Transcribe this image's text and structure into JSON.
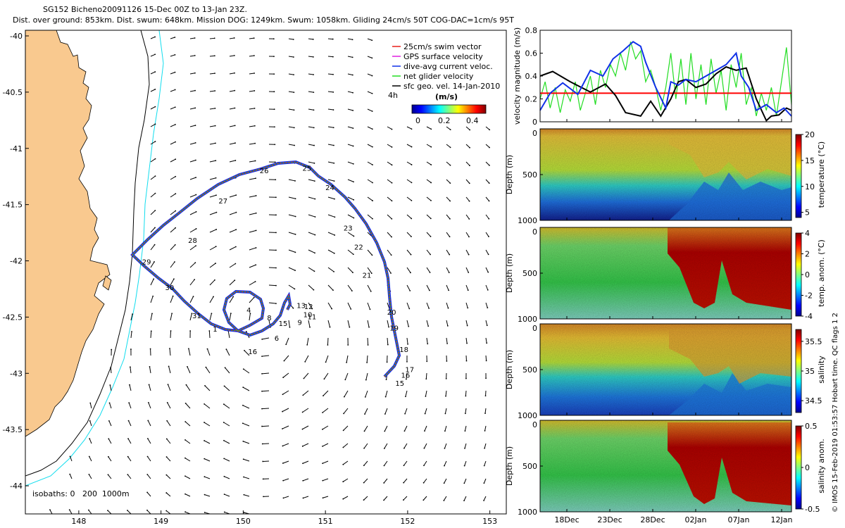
{
  "header": {
    "line1": "SG152 Bicheno20091126 15-Dec 00Z to 13-Jan 23Z.",
    "line2": "Dist. over ground: 853km. Dist. swum: 648km. Mission DOG: 1249km. Swum: 1058km. Gliding 24cm/s 50T COG-DAC=1cm/s 95T"
  },
  "side_note": "© IMOS 15-Feb-2019 01:53:57 Hobart time. QC flags 1 2",
  "colors": {
    "land": "#f9c98f",
    "swim": "#e8211b",
    "gps": "#e020e0",
    "dac": "#1030e8",
    "net": "#22dd22",
    "sfc": "#000000",
    "isobath_shallow": "#000000",
    "isobath_deep": "#11ddee"
  },
  "chart_data": [
    {
      "type": "map",
      "xlim": [
        147.35,
        153.2
      ],
      "ylim": [
        -44.25,
        -39.95
      ],
      "xticks": [
        148,
        149,
        150,
        151,
        152,
        153
      ],
      "yticks": [
        -40,
        -40.5,
        -41,
        -41.5,
        -42,
        -42.5,
        -43,
        -43.5,
        -44
      ],
      "isobaths_label": "isobaths: 0   200  1000m",
      "legend": [
        {
          "label": "25cm/s swim vector",
          "color": "#e8211b"
        },
        {
          "label": "GPS surface velocity",
          "color": "#e020e0"
        },
        {
          "label": "dive-avg current veloc.",
          "color": "#1030e8"
        },
        {
          "label": "net glider velocity",
          "color": "#22dd22"
        },
        {
          "label": "sfc geo. vel. 14-Jan-2010",
          "color": "#000000"
        }
      ],
      "colorbar": {
        "title": "(m/s)",
        "side_label": "4h",
        "ticks": [
          "0",
          "0.2",
          "0.4"
        ],
        "range": [
          0,
          0.5
        ]
      },
      "track_labels": [
        {
          "t": "25",
          "lon": 150.72,
          "lat": -41.2
        },
        {
          "t": "24",
          "lon": 151.0,
          "lat": -41.37
        },
        {
          "t": "23",
          "lon": 151.22,
          "lat": -41.73
        },
        {
          "t": "22",
          "lon": 151.35,
          "lat": -41.9
        },
        {
          "t": "21",
          "lon": 151.45,
          "lat": -42.15
        },
        {
          "t": "20",
          "lon": 151.75,
          "lat": -42.48
        },
        {
          "t": "19",
          "lon": 151.78,
          "lat": -42.62
        },
        {
          "t": "18",
          "lon": 151.9,
          "lat": -42.81
        },
        {
          "t": "17",
          "lon": 151.97,
          "lat": -42.99
        },
        {
          "t": "16",
          "lon": 151.92,
          "lat": -43.04
        },
        {
          "t": "15",
          "lon": 151.85,
          "lat": -43.11
        },
        {
          "t": "26",
          "lon": 150.2,
          "lat": -41.22
        },
        {
          "t": "27",
          "lon": 149.7,
          "lat": -41.49
        },
        {
          "t": "28",
          "lon": 149.33,
          "lat": -41.84
        },
        {
          "t": "29",
          "lon": 148.77,
          "lat": -42.03
        },
        {
          "t": "30",
          "lon": 149.05,
          "lat": -42.26
        },
        {
          "t": "31",
          "lon": 149.38,
          "lat": -42.51
        },
        {
          "t": "1",
          "lon": 149.63,
          "lat": -42.63
        },
        {
          "t": "4",
          "lon": 150.04,
          "lat": -42.46
        },
        {
          "t": "8",
          "lon": 150.29,
          "lat": -42.53
        },
        {
          "t": "15",
          "lon": 150.43,
          "lat": -42.58
        },
        {
          "t": "16",
          "lon": 150.06,
          "lat": -42.83
        },
        {
          "t": "6",
          "lon": 150.38,
          "lat": -42.71
        },
        {
          "t": "13",
          "lon": 150.65,
          "lat": -42.42
        },
        {
          "t": "12",
          "lon": 150.74,
          "lat": -42.43
        },
        {
          "t": "10",
          "lon": 150.73,
          "lat": -42.5
        },
        {
          "t": "11",
          "lon": 150.78,
          "lat": -42.52
        },
        {
          "t": "9",
          "lon": 150.66,
          "lat": -42.57
        }
      ]
    },
    {
      "type": "line",
      "ylabel": "velocity magnitude (m/s)",
      "ylim": [
        0,
        0.8
      ],
      "yticks": [
        0,
        0.2,
        0.4,
        0.6,
        0.8
      ],
      "series": [
        {
          "color": "#ff0000",
          "x": [
            0,
            1
          ],
          "y": [
            0.25,
            0.25
          ]
        },
        {
          "color": "#000000",
          "x": [
            0,
            0.05,
            0.12,
            0.2,
            0.26,
            0.3,
            0.34,
            0.4,
            0.44,
            0.48,
            0.52,
            0.55,
            0.58,
            0.62,
            0.66,
            0.7,
            0.74,
            0.78,
            0.82,
            0.86,
            0.9,
            0.92,
            0.95,
            0.98,
            1
          ],
          "y": [
            0.4,
            0.44,
            0.35,
            0.26,
            0.33,
            0.23,
            0.08,
            0.05,
            0.18,
            0.05,
            0.2,
            0.35,
            0.37,
            0.3,
            0.33,
            0.42,
            0.48,
            0.45,
            0.47,
            0.2,
            0.01,
            0.05,
            0.06,
            0.12,
            0.1
          ]
        },
        {
          "color": "#1030e8",
          "x": [
            0,
            0.04,
            0.09,
            0.15,
            0.2,
            0.25,
            0.29,
            0.33,
            0.37,
            0.4,
            0.42,
            0.46,
            0.5,
            0.52,
            0.55,
            0.58,
            0.62,
            0.66,
            0.7,
            0.74,
            0.78,
            0.8,
            0.83,
            0.86,
            0.9,
            0.94,
            0.97,
            1
          ],
          "y": [
            0.1,
            0.25,
            0.34,
            0.24,
            0.45,
            0.4,
            0.55,
            0.62,
            0.7,
            0.66,
            0.52,
            0.3,
            0.12,
            0.35,
            0.32,
            0.37,
            0.35,
            0.4,
            0.45,
            0.5,
            0.6,
            0.4,
            0.3,
            0.1,
            0.15,
            0.08,
            0.12,
            0.05
          ]
        },
        {
          "color": "#22dd22",
          "x": [
            0,
            0.02,
            0.04,
            0.06,
            0.08,
            0.1,
            0.12,
            0.14,
            0.16,
            0.18,
            0.2,
            0.22,
            0.24,
            0.26,
            0.28,
            0.3,
            0.32,
            0.34,
            0.36,
            0.38,
            0.4,
            0.42,
            0.44,
            0.46,
            0.48,
            0.5,
            0.52,
            0.54,
            0.56,
            0.58,
            0.6,
            0.62,
            0.64,
            0.66,
            0.68,
            0.7,
            0.72,
            0.74,
            0.76,
            0.78,
            0.8,
            0.82,
            0.84,
            0.86,
            0.88,
            0.9,
            0.92,
            0.94,
            0.96,
            0.98,
            1
          ],
          "y": [
            0.2,
            0.35,
            0.12,
            0.3,
            0.08,
            0.28,
            0.18,
            0.35,
            0.1,
            0.25,
            0.4,
            0.15,
            0.45,
            0.3,
            0.5,
            0.4,
            0.6,
            0.45,
            0.7,
            0.55,
            0.62,
            0.35,
            0.45,
            0.3,
            0.1,
            0.3,
            0.6,
            0.2,
            0.55,
            0.15,
            0.6,
            0.2,
            0.5,
            0.15,
            0.55,
            0.25,
            0.45,
            0.1,
            0.5,
            0.3,
            0.6,
            0.15,
            0.3,
            0.05,
            0.25,
            0.1,
            0.3,
            0.05,
            0.35,
            0.65,
            0.15
          ]
        }
      ]
    },
    {
      "type": "heatmap",
      "ylabel": "Depth (m)",
      "yticks": [
        0,
        500,
        1000
      ],
      "colorbar_label": "temperature (°C)",
      "colorbar_ticks": [
        5,
        10,
        15,
        20
      ],
      "clim": [
        4,
        20
      ]
    },
    {
      "type": "heatmap",
      "ylabel": "Depth (m)",
      "yticks": [
        0,
        500,
        1000
      ],
      "colorbar_label": "temp. anom. (°C)",
      "colorbar_ticks": [
        -4,
        -2,
        0,
        2,
        4
      ],
      "clim": [
        -4,
        4
      ]
    },
    {
      "type": "heatmap",
      "ylabel": "Depth (m)",
      "yticks": [
        0,
        500,
        1000
      ],
      "colorbar_label": "salinity",
      "colorbar_ticks": [
        34.5,
        35,
        35.5
      ],
      "clim": [
        34.3,
        35.7
      ]
    },
    {
      "type": "heatmap",
      "ylabel": "Depth (m)",
      "yticks": [
        0,
        500,
        1000
      ],
      "colorbar_label": "salinity anom.",
      "colorbar_ticks": [
        -0.5,
        0,
        0.5
      ],
      "clim": [
        -0.5,
        0.5
      ],
      "xticks": [
        "18Dec",
        "23Dec",
        "28Dec",
        "02Jan",
        "07Jan",
        "12Jan"
      ]
    }
  ]
}
